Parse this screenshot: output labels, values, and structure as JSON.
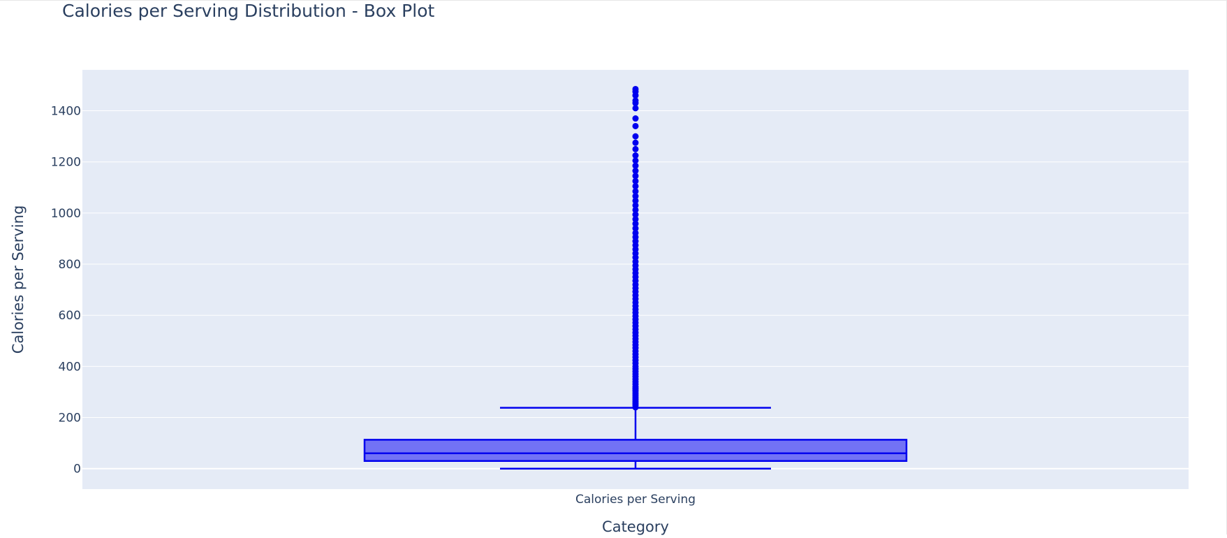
{
  "chart_data": {
    "type": "box",
    "title": "Calories per Serving Distribution - Box Plot",
    "xlabel": "Category",
    "ylabel": "Calories per Serving",
    "categories": [
      "Calories per Serving"
    ],
    "ylim": [
      -80,
      1560
    ],
    "yticks": [
      0,
      200,
      400,
      600,
      800,
      1000,
      1200,
      1400
    ],
    "grid": true,
    "box": {
      "min": 0,
      "q1": 30,
      "median": 60,
      "q3": 113,
      "upper_fence": 238
    },
    "outliers": [
      240,
      248,
      256,
      264,
      272,
      280,
      288,
      296,
      304,
      312,
      320,
      330,
      340,
      350,
      360,
      370,
      380,
      390,
      400,
      412,
      424,
      436,
      448,
      460,
      472,
      484,
      496,
      508,
      520,
      532,
      545,
      558,
      571,
      584,
      597,
      610,
      623,
      636,
      650,
      664,
      678,
      692,
      706,
      720,
      735,
      750,
      765,
      780,
      795,
      810,
      826,
      842,
      858,
      874,
      890,
      906,
      922,
      940,
      958,
      976,
      994,
      1012,
      1030,
      1048,
      1066,
      1085,
      1105,
      1125,
      1145,
      1165,
      1185,
      1205,
      1225,
      1250,
      1275,
      1300,
      1340,
      1370,
      1410,
      1430,
      1440,
      1460,
      1475,
      1485
    ],
    "colors": {
      "box_line": "#0000ee",
      "box_fill": "#7272f5",
      "plot_bg": "#e5ebf6",
      "grid": "#ffffff",
      "text": "#2a3f5f"
    }
  }
}
